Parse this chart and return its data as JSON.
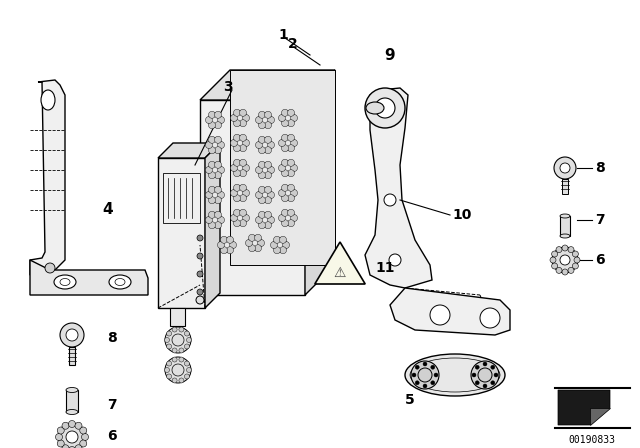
{
  "bg_color": "#ffffff",
  "line_color": "#000000",
  "figsize": [
    6.4,
    4.48
  ],
  "dpi": 100,
  "image_id": "00190833"
}
